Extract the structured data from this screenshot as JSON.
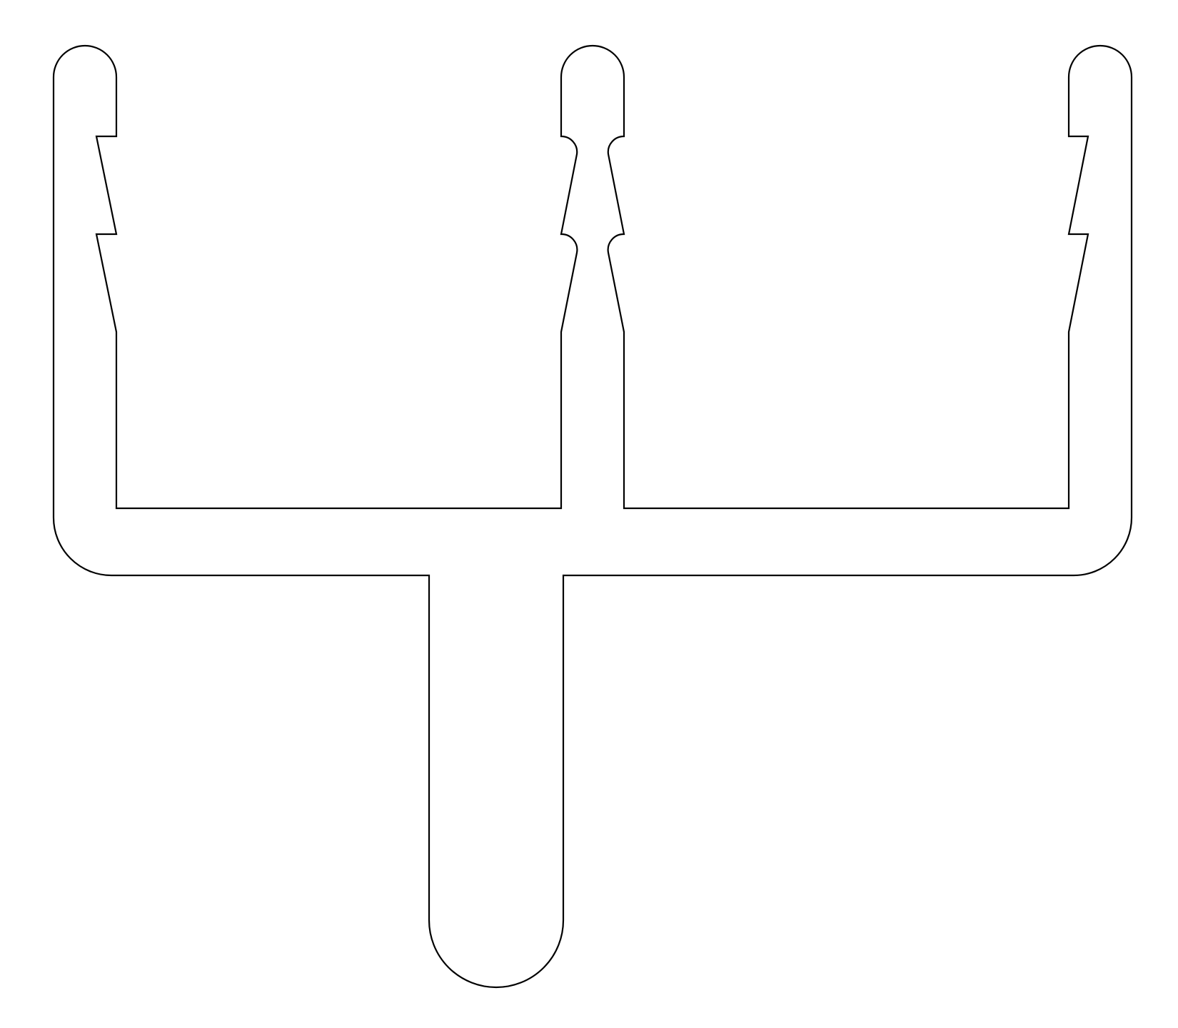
{
  "diagram": {
    "subject": "extrusion-profile-cross-section",
    "stroke_color": "#000000",
    "background_color": "#ffffff",
    "symmetric": false,
    "left_flange_notches": 2,
    "center_fin_notches": 2,
    "right_flange_notches": 2,
    "bottom_stem_end": "rounded",
    "flange_tips": "rounded"
  }
}
